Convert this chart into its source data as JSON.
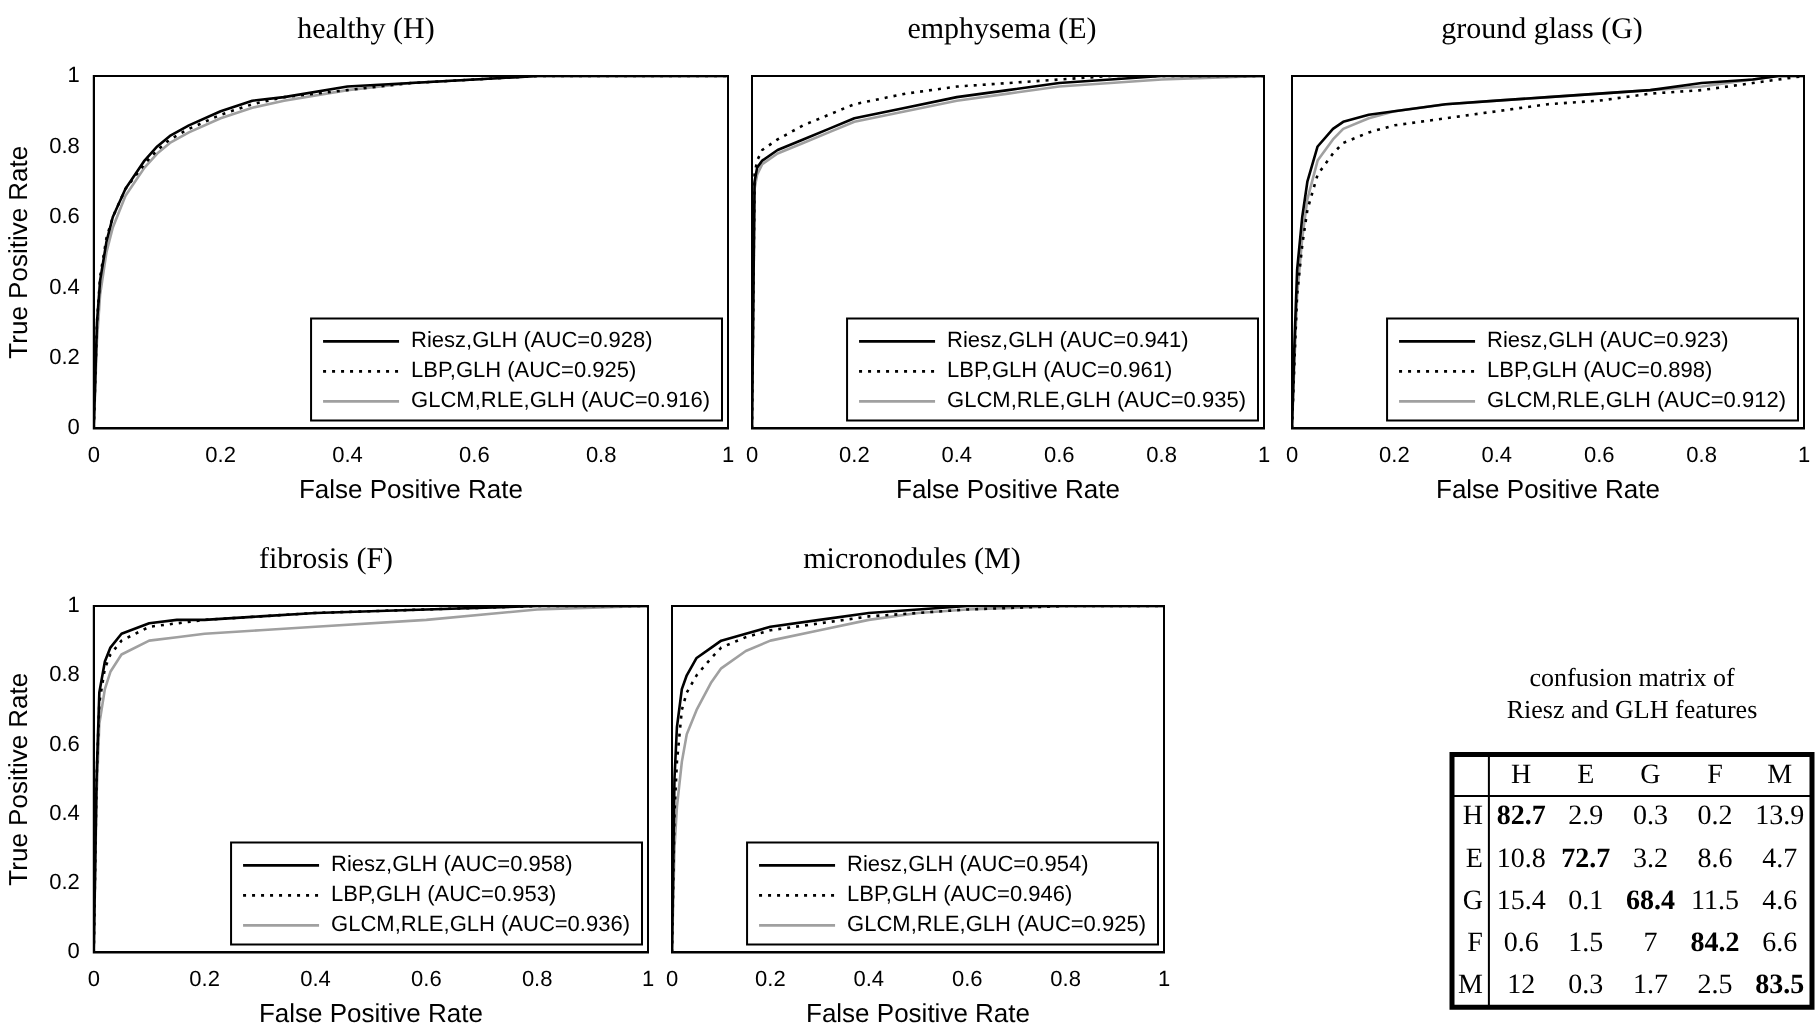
{
  "chart_data": [
    {
      "type": "line",
      "title": "healthy (H)",
      "xlabel": "False Positive Rate",
      "ylabel": "True Positive Rate",
      "xlim": [
        0,
        1
      ],
      "ylim": [
        0,
        1
      ],
      "xticks": [
        0,
        0.2,
        0.4,
        0.6,
        0.8,
        1
      ],
      "yticks": [
        0,
        0.2,
        0.4,
        0.6,
        0.8,
        1
      ],
      "legend": "bottom right",
      "x": [
        0,
        0.005,
        0.01,
        0.02,
        0.03,
        0.05,
        0.08,
        0.1,
        0.12,
        0.15,
        0.2,
        0.25,
        0.3,
        0.4,
        0.5,
        0.6,
        0.7,
        1
      ],
      "series": [
        {
          "name": "Riesz,GLH (AUC=0.928)",
          "color": "#000000",
          "line_style": "solid",
          "values": [
            0,
            0.3,
            0.42,
            0.53,
            0.6,
            0.68,
            0.76,
            0.8,
            0.83,
            0.86,
            0.9,
            0.93,
            0.94,
            0.97,
            0.98,
            0.99,
            1,
            1
          ]
        },
        {
          "name": "LBP,GLH (AUC=0.925)",
          "color": "#000000",
          "line_style": "dotted",
          "values": [
            0,
            0.3,
            0.43,
            0.54,
            0.6,
            0.68,
            0.75,
            0.79,
            0.82,
            0.85,
            0.89,
            0.92,
            0.94,
            0.96,
            0.98,
            0.99,
            1,
            1
          ]
        },
        {
          "name": "GLCM,RLE,GLH (AUC=0.916)",
          "color": "#a0a0a0",
          "line_style": "solid",
          "values": [
            0,
            0.25,
            0.38,
            0.5,
            0.57,
            0.66,
            0.74,
            0.78,
            0.81,
            0.84,
            0.88,
            0.91,
            0.93,
            0.96,
            0.98,
            0.99,
            1,
            1
          ]
        }
      ]
    },
    {
      "type": "line",
      "title": "emphysema (E)",
      "xlabel": "False Positive Rate",
      "xlim": [
        0,
        1
      ],
      "ylim": [
        0,
        1
      ],
      "xticks": [
        0,
        0.2,
        0.4,
        0.6,
        0.8,
        1
      ],
      "yticks": [
        0,
        0.2,
        0.4,
        0.6,
        0.8,
        1
      ],
      "tick_labels": "x",
      "legend": "bottom right",
      "x": [
        0,
        0.005,
        0.01,
        0.02,
        0.05,
        0.1,
        0.15,
        0.2,
        0.3,
        0.4,
        0.5,
        0.6,
        0.7,
        0.8,
        1
      ],
      "series": [
        {
          "name": "Riesz,GLH (AUC=0.941)",
          "color": "#000000",
          "line_style": "solid",
          "values": [
            0,
            0.7,
            0.74,
            0.76,
            0.79,
            0.82,
            0.85,
            0.88,
            0.91,
            0.94,
            0.96,
            0.98,
            0.99,
            1,
            1
          ]
        },
        {
          "name": "LBP,GLH (AUC=0.961)",
          "color": "#000000",
          "line_style": "dotted",
          "values": [
            0,
            0.72,
            0.76,
            0.79,
            0.82,
            0.86,
            0.89,
            0.92,
            0.95,
            0.97,
            0.98,
            0.99,
            1,
            1,
            1
          ]
        },
        {
          "name": "GLCM,RLE,GLH (AUC=0.935)",
          "color": "#a0a0a0",
          "line_style": "solid",
          "values": [
            0,
            0.68,
            0.72,
            0.75,
            0.78,
            0.81,
            0.84,
            0.87,
            0.9,
            0.93,
            0.95,
            0.97,
            0.98,
            0.99,
            1
          ]
        }
      ]
    },
    {
      "type": "line",
      "title": "ground glass (G)",
      "xlabel": "False Positive Rate",
      "xlim": [
        0,
        1
      ],
      "ylim": [
        0,
        1
      ],
      "xticks": [
        0,
        0.2,
        0.4,
        0.6,
        0.8,
        1
      ],
      "yticks": [
        0,
        0.2,
        0.4,
        0.6,
        0.8,
        1
      ],
      "tick_labels": "x",
      "legend": "bottom right",
      "x": [
        0,
        0.005,
        0.01,
        0.02,
        0.03,
        0.05,
        0.08,
        0.1,
        0.15,
        0.2,
        0.3,
        0.4,
        0.5,
        0.6,
        0.7,
        0.8,
        0.9,
        0.95,
        1
      ],
      "series": [
        {
          "name": "Riesz,GLH (AUC=0.923)",
          "color": "#000000",
          "line_style": "solid",
          "values": [
            0,
            0.25,
            0.45,
            0.6,
            0.7,
            0.8,
            0.85,
            0.87,
            0.89,
            0.9,
            0.92,
            0.93,
            0.94,
            0.95,
            0.96,
            0.98,
            0.99,
            1,
            1
          ]
        },
        {
          "name": "LBP,GLH (AUC=0.898)",
          "color": "#000000",
          "line_style": "dotted",
          "values": [
            0,
            0.2,
            0.38,
            0.52,
            0.62,
            0.72,
            0.78,
            0.81,
            0.84,
            0.86,
            0.88,
            0.9,
            0.92,
            0.93,
            0.95,
            0.96,
            0.98,
            0.99,
            1
          ]
        },
        {
          "name": "GLCM,RLE,GLH (AUC=0.912)",
          "color": "#a0a0a0",
          "line_style": "solid",
          "values": [
            0,
            0.2,
            0.38,
            0.54,
            0.65,
            0.76,
            0.82,
            0.85,
            0.88,
            0.9,
            0.92,
            0.93,
            0.94,
            0.95,
            0.96,
            0.97,
            0.99,
            1,
            1
          ]
        }
      ]
    },
    {
      "type": "line",
      "title": "fibrosis (F)",
      "xlabel": "False Positive Rate",
      "ylabel": "True Positive Rate",
      "xlim": [
        0,
        1
      ],
      "ylim": [
        0,
        1
      ],
      "xticks": [
        0,
        0.2,
        0.4,
        0.6,
        0.8,
        1
      ],
      "yticks": [
        0,
        0.2,
        0.4,
        0.6,
        0.8,
        1
      ],
      "legend": "bottom right",
      "x": [
        0,
        0.005,
        0.01,
        0.02,
        0.03,
        0.05,
        0.1,
        0.15,
        0.2,
        0.3,
        0.4,
        0.6,
        0.8,
        1
      ],
      "series": [
        {
          "name": "Riesz,GLH (AUC=0.958)",
          "color": "#000000",
          "line_style": "solid",
          "values": [
            0,
            0.5,
            0.75,
            0.84,
            0.88,
            0.92,
            0.95,
            0.96,
            0.96,
            0.97,
            0.98,
            0.99,
            1,
            1
          ]
        },
        {
          "name": "LBP,GLH (AUC=0.953)",
          "color": "#000000",
          "line_style": "dotted",
          "values": [
            0,
            0.5,
            0.72,
            0.82,
            0.86,
            0.9,
            0.94,
            0.95,
            0.96,
            0.97,
            0.98,
            0.99,
            1,
            1
          ]
        },
        {
          "name": "GLCM,RLE,GLH (AUC=0.936)",
          "color": "#a0a0a0",
          "line_style": "solid",
          "values": [
            0,
            0.45,
            0.66,
            0.76,
            0.81,
            0.86,
            0.9,
            0.91,
            0.92,
            0.93,
            0.94,
            0.96,
            0.99,
            1
          ]
        }
      ]
    },
    {
      "type": "line",
      "title": "micronodules (M)",
      "xlabel": "False Positive Rate",
      "xlim": [
        0,
        1
      ],
      "ylim": [
        0,
        1
      ],
      "xticks": [
        0,
        0.2,
        0.4,
        0.6,
        0.8,
        1
      ],
      "yticks": [
        0,
        0.2,
        0.4,
        0.6,
        0.8,
        1
      ],
      "tick_labels": "x",
      "legend": "bottom right",
      "x": [
        0,
        0.005,
        0.01,
        0.02,
        0.03,
        0.05,
        0.08,
        0.1,
        0.15,
        0.2,
        0.3,
        0.4,
        0.5,
        0.6,
        0.8,
        1
      ],
      "series": [
        {
          "name": "Riesz,GLH (AUC=0.954)",
          "color": "#000000",
          "line_style": "solid",
          "values": [
            0,
            0.5,
            0.65,
            0.76,
            0.8,
            0.85,
            0.88,
            0.9,
            0.92,
            0.94,
            0.96,
            0.98,
            0.99,
            1,
            1,
            1
          ]
        },
        {
          "name": "LBP,GLH (AUC=0.946)",
          "color": "#000000",
          "line_style": "dotted",
          "values": [
            0,
            0.4,
            0.55,
            0.7,
            0.75,
            0.8,
            0.85,
            0.88,
            0.91,
            0.93,
            0.95,
            0.97,
            0.98,
            0.99,
            1,
            1
          ]
        },
        {
          "name": "GLCM,RLE,GLH (AUC=0.925)",
          "color": "#a0a0a0",
          "line_style": "solid",
          "values": [
            0,
            0.3,
            0.42,
            0.55,
            0.63,
            0.7,
            0.78,
            0.82,
            0.87,
            0.9,
            0.93,
            0.96,
            0.98,
            0.99,
            1,
            1
          ]
        }
      ]
    },
    {
      "type": "heatmap",
      "title": "confusion matrix of\nRiesz and GLH features",
      "categories": [
        "H",
        "E",
        "G",
        "F",
        "M"
      ],
      "y_categories": [
        "H",
        "E",
        "G",
        "F",
        "M"
      ],
      "data_labels": true,
      "cells": [
        [
          82.7,
          2.9,
          0.3,
          0.2,
          13.9
        ],
        [
          10.8,
          72.7,
          3.2,
          8.6,
          4.7
        ],
        [
          15.4,
          0.1,
          68.4,
          11.5,
          4.6
        ],
        [
          0.6,
          1.5,
          7,
          84.2,
          6.6
        ],
        [
          12,
          0.3,
          1.7,
          2.5,
          83.5
        ]
      ]
    }
  ]
}
